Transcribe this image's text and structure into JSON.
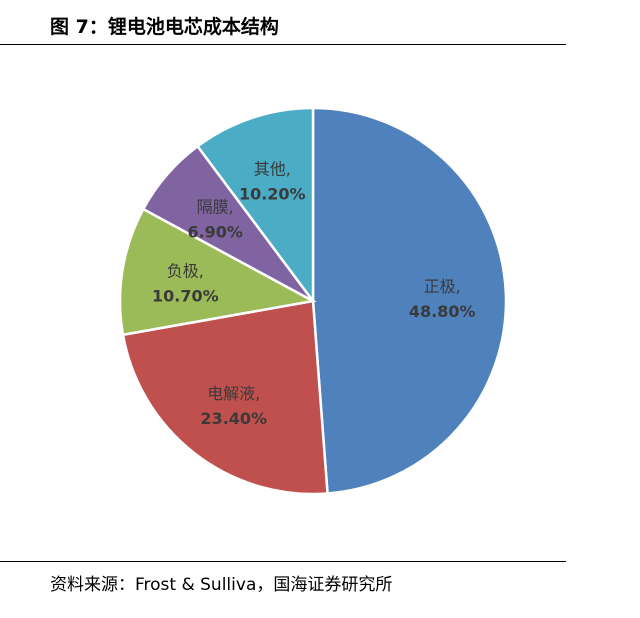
{
  "figure": {
    "title": "图 7：锂电池电芯成本结构",
    "source": "资料来源：Frost & Sulliva，国海证券研究所"
  },
  "chart_data": {
    "type": "pie",
    "title": "",
    "slices": [
      {
        "label": "正极,",
        "value": 48.8,
        "value_label": "48.80%",
        "color": "#4f81bd"
      },
      {
        "label": "电解液,",
        "value": 23.4,
        "value_label": "23.40%",
        "color": "#c0504d"
      },
      {
        "label": "负极,",
        "value": 10.7,
        "value_label": "10.70%",
        "color": "#9bbb59"
      },
      {
        "label": "隔膜,",
        "value": 6.9,
        "value_label": "6.90%",
        "color": "#8064a2"
      },
      {
        "label": "其他,",
        "value": 10.2,
        "value_label": "10.20%",
        "color": "#4bacc6"
      }
    ],
    "start": "12 o'clock",
    "direction": "clockwise",
    "legend": "none",
    "data_labels": "category and value"
  }
}
